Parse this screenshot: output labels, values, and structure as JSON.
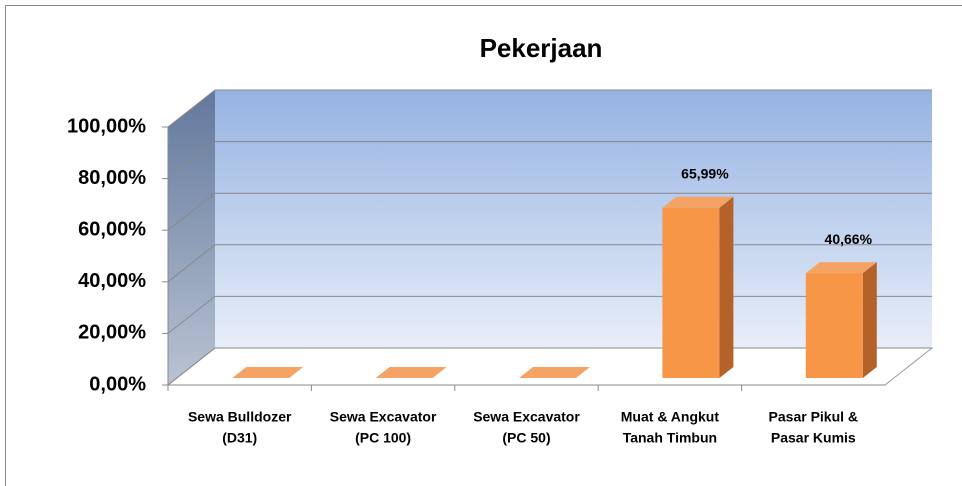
{
  "chart_data": {
    "type": "bar3d",
    "title": "Pekerjaan",
    "categories": [
      [
        "Sewa Bulldozer",
        "(D31)"
      ],
      [
        "Sewa Excavator",
        "(PC 100)"
      ],
      [
        "Sewa Excavator",
        "(PC 50)"
      ],
      [
        "Muat & Angkut",
        "Tanah Timbun"
      ],
      [
        "Pasar Pikul &",
        "Pasar Kumis"
      ]
    ],
    "values": [
      0,
      0,
      0,
      65.99,
      40.66
    ],
    "value_labels": [
      null,
      null,
      null,
      "65,99%",
      "40,66%"
    ],
    "color": "#f79646",
    "ylim": [
      0,
      100
    ],
    "yticks": [
      {
        "value": 0,
        "label": "0,00%"
      },
      {
        "value": 20,
        "label": "20,00%"
      },
      {
        "value": 40,
        "label": "40,00%"
      },
      {
        "value": 60,
        "label": "60,00%"
      },
      {
        "value": 80,
        "label": "80,00%"
      },
      {
        "value": 100,
        "label": "100,00%"
      }
    ],
    "grid": true
  }
}
